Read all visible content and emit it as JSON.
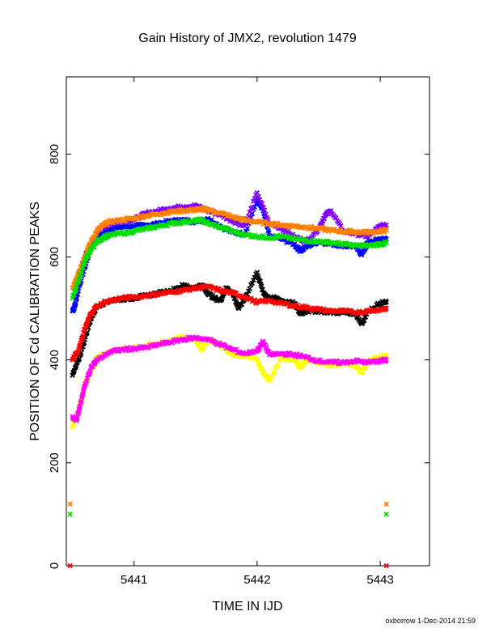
{
  "chart_data": {
    "type": "scatter",
    "title": "Gain History of JMX2, revolution 1479",
    "xlabel": "TIME IN IJD",
    "ylabel": "POSITION OF Cd CALIBRATION PEAKS",
    "footer": "oxborrow 1-Dec-2014 21:59",
    "xlim": [
      5440.45,
      5443.4
    ],
    "ylim": [
      0,
      950
    ],
    "x_ticks": [
      5441,
      5442,
      5443
    ],
    "x_tick_labels": [
      "5441",
      "5442",
      "5443"
    ],
    "y_ticks": [
      0,
      200,
      400,
      600,
      800
    ],
    "y_tick_labels": [
      "0",
      "200",
      "400",
      "600",
      "800"
    ],
    "grid": false,
    "legend": "none",
    "series": [
      {
        "color": "#0000ff",
        "marker": "x",
        "points": [
          [
            5440.5,
            495
          ],
          [
            5440.52,
            505
          ],
          [
            5440.55,
            540
          ],
          [
            5440.6,
            580
          ],
          [
            5440.65,
            620
          ],
          [
            5440.7,
            640
          ],
          [
            5440.8,
            655
          ],
          [
            5440.9,
            658
          ],
          [
            5441.0,
            660
          ],
          [
            5441.1,
            662
          ],
          [
            5441.2,
            665
          ],
          [
            5441.3,
            670
          ],
          [
            5441.4,
            672
          ],
          [
            5441.5,
            668
          ],
          [
            5441.6,
            675
          ],
          [
            5441.7,
            660
          ],
          [
            5441.8,
            648
          ],
          [
            5441.9,
            645
          ],
          [
            5442.0,
            710
          ],
          [
            5442.05,
            690
          ],
          [
            5442.1,
            640
          ],
          [
            5442.2,
            635
          ],
          [
            5442.3,
            625
          ],
          [
            5442.35,
            612
          ],
          [
            5442.4,
            620
          ],
          [
            5442.5,
            630
          ],
          [
            5442.6,
            625
          ],
          [
            5442.7,
            622
          ],
          [
            5442.8,
            620
          ],
          [
            5442.85,
            605
          ],
          [
            5442.9,
            628
          ],
          [
            5443.0,
            635
          ],
          [
            5443.05,
            635
          ]
        ]
      },
      {
        "color": "#8000ff",
        "marker": "x",
        "points": [
          [
            5440.55,
            560
          ],
          [
            5440.6,
            600
          ],
          [
            5440.7,
            650
          ],
          [
            5440.8,
            665
          ],
          [
            5440.9,
            670
          ],
          [
            5441.0,
            673
          ],
          [
            5441.1,
            685
          ],
          [
            5441.2,
            690
          ],
          [
            5441.3,
            695
          ],
          [
            5441.4,
            698
          ],
          [
            5441.5,
            700
          ],
          [
            5441.6,
            690
          ],
          [
            5441.7,
            682
          ],
          [
            5441.8,
            670
          ],
          [
            5441.9,
            660
          ],
          [
            5442.0,
            725
          ],
          [
            5442.1,
            665
          ],
          [
            5442.2,
            655
          ],
          [
            5442.3,
            640
          ],
          [
            5442.4,
            630
          ],
          [
            5442.5,
            655
          ],
          [
            5442.55,
            680
          ],
          [
            5442.6,
            690
          ],
          [
            5442.7,
            650
          ],
          [
            5442.8,
            645
          ],
          [
            5442.9,
            640
          ],
          [
            5443.0,
            660
          ],
          [
            5443.05,
            662
          ]
        ]
      },
      {
        "color": "#ff8000",
        "marker": "x",
        "points": [
          [
            5440.5,
            540
          ],
          [
            5440.55,
            570
          ],
          [
            5440.6,
            600
          ],
          [
            5440.65,
            630
          ],
          [
            5440.7,
            650
          ],
          [
            5440.75,
            662
          ],
          [
            5440.8,
            668
          ],
          [
            5440.9,
            672
          ],
          [
            5441.0,
            675
          ],
          [
            5441.1,
            680
          ],
          [
            5441.2,
            684
          ],
          [
            5441.3,
            688
          ],
          [
            5441.4,
            690
          ],
          [
            5441.5,
            692
          ],
          [
            5441.55,
            693
          ],
          [
            5441.6,
            692
          ],
          [
            5441.7,
            685
          ],
          [
            5441.8,
            678
          ],
          [
            5441.9,
            672
          ],
          [
            5442.0,
            668
          ],
          [
            5442.1,
            665
          ],
          [
            5442.2,
            662
          ],
          [
            5442.3,
            660
          ],
          [
            5442.4,
            658
          ],
          [
            5442.5,
            655
          ],
          [
            5442.6,
            652
          ],
          [
            5442.7,
            650
          ],
          [
            5442.8,
            649
          ],
          [
            5442.9,
            648
          ],
          [
            5443.0,
            650
          ],
          [
            5443.05,
            652
          ],
          [
            5440.48,
            120
          ],
          [
            5443.05,
            120
          ]
        ]
      },
      {
        "color": "#00dd00",
        "marker": "x",
        "points": [
          [
            5440.5,
            520
          ],
          [
            5440.55,
            555
          ],
          [
            5440.6,
            590
          ],
          [
            5440.65,
            615
          ],
          [
            5440.7,
            630
          ],
          [
            5440.75,
            638
          ],
          [
            5440.8,
            642
          ],
          [
            5440.9,
            646
          ],
          [
            5441.0,
            650
          ],
          [
            5441.1,
            655
          ],
          [
            5441.2,
            660
          ],
          [
            5441.3,
            665
          ],
          [
            5441.4,
            668
          ],
          [
            5441.5,
            670
          ],
          [
            5441.55,
            672
          ],
          [
            5441.6,
            665
          ],
          [
            5441.7,
            658
          ],
          [
            5441.8,
            650
          ],
          [
            5441.9,
            643
          ],
          [
            5442.0,
            640
          ],
          [
            5442.1,
            638
          ],
          [
            5442.2,
            640
          ],
          [
            5442.3,
            635
          ],
          [
            5442.4,
            632
          ],
          [
            5442.5,
            630
          ],
          [
            5442.6,
            628
          ],
          [
            5442.7,
            625
          ],
          [
            5442.8,
            622
          ],
          [
            5442.9,
            622
          ],
          [
            5443.0,
            625
          ],
          [
            5443.05,
            628
          ],
          [
            5440.48,
            100
          ],
          [
            5443.05,
            100
          ]
        ]
      },
      {
        "color": "#000000",
        "marker": "x",
        "points": [
          [
            5440.5,
            370
          ],
          [
            5440.55,
            400
          ],
          [
            5440.6,
            440
          ],
          [
            5440.65,
            480
          ],
          [
            5440.7,
            505
          ],
          [
            5440.8,
            515
          ],
          [
            5440.9,
            518
          ],
          [
            5441.0,
            520
          ],
          [
            5441.1,
            525
          ],
          [
            5441.2,
            530
          ],
          [
            5441.3,
            535
          ],
          [
            5441.4,
            545
          ],
          [
            5441.5,
            540
          ],
          [
            5441.55,
            545
          ],
          [
            5441.6,
            530
          ],
          [
            5441.65,
            520
          ],
          [
            5441.7,
            515
          ],
          [
            5441.75,
            540
          ],
          [
            5441.8,
            530
          ],
          [
            5441.85,
            500
          ],
          [
            5441.9,
            520
          ],
          [
            5442.0,
            570
          ],
          [
            5442.05,
            530
          ],
          [
            5442.1,
            520
          ],
          [
            5442.15,
            520
          ],
          [
            5442.2,
            515
          ],
          [
            5442.3,
            510
          ],
          [
            5442.35,
            490
          ],
          [
            5442.4,
            495
          ],
          [
            5442.5,
            495
          ],
          [
            5442.6,
            492
          ],
          [
            5442.7,
            492
          ],
          [
            5442.8,
            490
          ],
          [
            5442.85,
            470
          ],
          [
            5442.9,
            495
          ],
          [
            5443.0,
            510
          ],
          [
            5443.05,
            512
          ]
        ]
      },
      {
        "color": "#ff0000",
        "marker": "x",
        "points": [
          [
            5440.5,
            400
          ],
          [
            5440.55,
            420
          ],
          [
            5440.6,
            460
          ],
          [
            5440.65,
            490
          ],
          [
            5440.7,
            505
          ],
          [
            5440.8,
            515
          ],
          [
            5440.9,
            520
          ],
          [
            5441.0,
            522
          ],
          [
            5441.1,
            525
          ],
          [
            5441.2,
            528
          ],
          [
            5441.3,
            532
          ],
          [
            5441.4,
            535
          ],
          [
            5441.5,
            540
          ],
          [
            5441.6,
            542
          ],
          [
            5441.7,
            535
          ],
          [
            5441.8,
            530
          ],
          [
            5441.9,
            522
          ],
          [
            5442.0,
            512
          ],
          [
            5442.1,
            515
          ],
          [
            5442.2,
            510
          ],
          [
            5442.3,
            505
          ],
          [
            5442.4,
            502
          ],
          [
            5442.5,
            498
          ],
          [
            5442.6,
            495
          ],
          [
            5442.7,
            495
          ],
          [
            5442.8,
            492
          ],
          [
            5442.9,
            495
          ],
          [
            5443.0,
            498
          ],
          [
            5443.05,
            500
          ],
          [
            5440.48,
            0
          ],
          [
            5443.05,
            0
          ]
        ]
      },
      {
        "color": "#ffff00",
        "marker": "x",
        "points": [
          [
            5440.5,
            270
          ],
          [
            5440.55,
            300
          ],
          [
            5440.6,
            350
          ],
          [
            5440.65,
            380
          ],
          [
            5440.7,
            405
          ],
          [
            5440.8,
            415
          ],
          [
            5440.9,
            420
          ],
          [
            5441.0,
            422
          ],
          [
            5441.1,
            428
          ],
          [
            5441.2,
            432
          ],
          [
            5441.3,
            438
          ],
          [
            5441.4,
            445
          ],
          [
            5441.5,
            440
          ],
          [
            5441.55,
            420
          ],
          [
            5441.6,
            440
          ],
          [
            5441.7,
            430
          ],
          [
            5441.8,
            410
          ],
          [
            5441.9,
            408
          ],
          [
            5442.0,
            400
          ],
          [
            5442.05,
            375
          ],
          [
            5442.1,
            360
          ],
          [
            5442.2,
            405
          ],
          [
            5442.3,
            400
          ],
          [
            5442.35,
            385
          ],
          [
            5442.4,
            400
          ],
          [
            5442.5,
            395
          ],
          [
            5442.6,
            390
          ],
          [
            5442.7,
            392
          ],
          [
            5442.8,
            390
          ],
          [
            5442.85,
            375
          ],
          [
            5442.9,
            398
          ],
          [
            5443.0,
            405
          ],
          [
            5443.05,
            408
          ]
        ]
      },
      {
        "color": "#ff00ff",
        "marker": "x",
        "points": [
          [
            5440.5,
            290
          ],
          [
            5440.53,
            282
          ],
          [
            5440.56,
            310
          ],
          [
            5440.6,
            350
          ],
          [
            5440.65,
            385
          ],
          [
            5440.7,
            400
          ],
          [
            5440.8,
            415
          ],
          [
            5440.9,
            420
          ],
          [
            5441.0,
            422
          ],
          [
            5441.1,
            424
          ],
          [
            5441.2,
            430
          ],
          [
            5441.3,
            435
          ],
          [
            5441.4,
            440
          ],
          [
            5441.5,
            443
          ],
          [
            5441.6,
            440
          ],
          [
            5441.7,
            430
          ],
          [
            5441.8,
            420
          ],
          [
            5441.9,
            412
          ],
          [
            5442.0,
            418
          ],
          [
            5442.05,
            435
          ],
          [
            5442.1,
            410
          ],
          [
            5442.2,
            412
          ],
          [
            5442.3,
            410
          ],
          [
            5442.4,
            405
          ],
          [
            5442.5,
            398
          ],
          [
            5442.6,
            395
          ],
          [
            5442.7,
            395
          ],
          [
            5442.8,
            398
          ],
          [
            5442.9,
            395
          ],
          [
            5443.0,
            398
          ],
          [
            5443.05,
            400
          ]
        ]
      }
    ]
  }
}
